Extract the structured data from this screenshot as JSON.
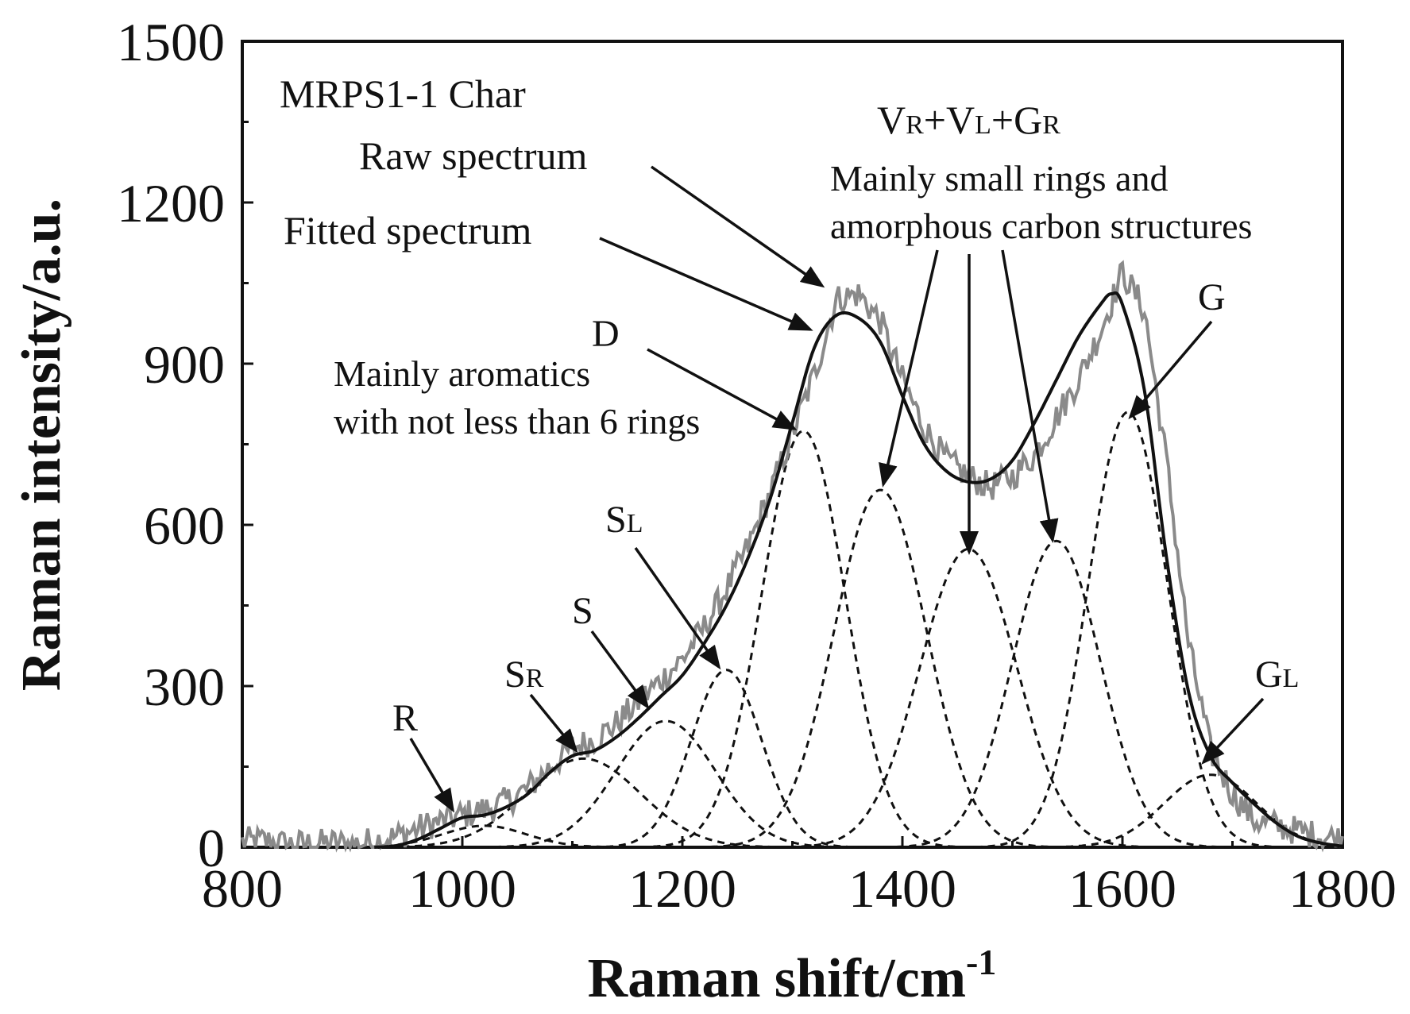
{
  "chart_data": {
    "type": "line",
    "title": "MRPS1-1 Char",
    "xlabel": "Raman shift/cm",
    "xlabel_superscript": "-1",
    "ylabel": "Raman intensity/a.u.",
    "xlim": [
      800,
      1800
    ],
    "ylim": [
      0,
      1500
    ],
    "xticks": [
      800,
      1000,
      1200,
      1400,
      1600,
      1800
    ],
    "xtick_labels": [
      "800",
      "1000",
      "1200",
      "1400",
      "1600",
      "1800"
    ],
    "yticks": [
      0,
      300,
      600,
      900,
      1200,
      1500
    ],
    "ytick_labels": [
      "0",
      "300",
      "600",
      "900",
      "1200",
      "1500"
    ],
    "colors": {
      "raw": "#8a8a8a",
      "fitted": "#111111",
      "band": "#111111",
      "axis": "#111111"
    },
    "raw_spectrum": {
      "name": "Raw spectrum",
      "noise_amplitude": 28,
      "x": [
        800,
        820,
        840,
        860,
        880,
        900,
        920,
        940,
        960,
        980,
        1000,
        1020,
        1040,
        1060,
        1080,
        1100,
        1120,
        1140,
        1160,
        1180,
        1200,
        1220,
        1240,
        1260,
        1280,
        1300,
        1320,
        1340,
        1360,
        1380,
        1400,
        1420,
        1440,
        1460,
        1480,
        1500,
        1520,
        1540,
        1560,
        1580,
        1600,
        1620,
        1640,
        1660,
        1680,
        1700,
        1720,
        1740,
        1760,
        1780,
        1800
      ],
      "y": [
        10,
        12,
        5,
        6,
        8,
        5,
        12,
        20,
        35,
        48,
        60,
        70,
        85,
        110,
        150,
        185,
        200,
        230,
        270,
        310,
        350,
        410,
        480,
        560,
        660,
        770,
        880,
        1020,
        1030,
        980,
        870,
        780,
        720,
        690,
        670,
        690,
        730,
        800,
        870,
        960,
        1070,
        1000,
        720,
        380,
        180,
        100,
        50,
        40,
        30,
        20,
        15
      ]
    },
    "fitted_spectrum": {
      "name": "Fitted spectrum",
      "x": [
        920,
        940,
        960,
        980,
        1000,
        1020,
        1040,
        1060,
        1080,
        1100,
        1120,
        1140,
        1160,
        1180,
        1200,
        1220,
        1240,
        1260,
        1280,
        1300,
        1320,
        1340,
        1360,
        1380,
        1400,
        1420,
        1440,
        1460,
        1480,
        1500,
        1520,
        1540,
        1560,
        1580,
        1590,
        1600,
        1620,
        1640,
        1660,
        1680,
        1700,
        1720,
        1740,
        1760,
        1780,
        1800
      ],
      "y": [
        0,
        3,
        15,
        35,
        55,
        60,
        75,
        100,
        140,
        170,
        180,
        205,
        240,
        280,
        320,
        380,
        450,
        540,
        650,
        790,
        930,
        990,
        985,
        940,
        840,
        750,
        700,
        680,
        685,
        720,
        790,
        870,
        950,
        1010,
        1030,
        1010,
        850,
        540,
        290,
        170,
        120,
        80,
        45,
        20,
        8,
        2
      ]
    },
    "bands": [
      {
        "name": "R",
        "center": 1020,
        "height": 40,
        "width": 38
      },
      {
        "name": "SR",
        "center": 1110,
        "height": 165,
        "width": 52
      },
      {
        "name": "S",
        "center": 1185,
        "height": 235,
        "width": 45
      },
      {
        "name": "SL",
        "center": 1240,
        "height": 330,
        "width": 32
      },
      {
        "name": "D",
        "center": 1310,
        "height": 775,
        "width": 38
      },
      {
        "name": "VL",
        "center": 1380,
        "height": 665,
        "width": 42
      },
      {
        "name": "VR",
        "center": 1460,
        "height": 555,
        "width": 44
      },
      {
        "name": "GR",
        "center": 1540,
        "height": 570,
        "width": 40
      },
      {
        "name": "G",
        "center": 1605,
        "height": 810,
        "width": 36
      },
      {
        "name": "GL",
        "center": 1680,
        "height": 135,
        "width": 42
      }
    ],
    "annotations": {
      "sample": "MRPS1-1 Char",
      "raw": "Raw spectrum",
      "fitted": "Fitted spectrum",
      "d_label": "D",
      "d_desc_1": "Mainly aromatics",
      "d_desc_2": "with not less than 6 rings",
      "v_label_parts": [
        "V",
        "R",
        "+V",
        "L",
        "+G",
        "R"
      ],
      "v_desc_1": "Mainly small rings and",
      "v_desc_2": "amorphous carbon structures",
      "g_label": "G",
      "gl_label": [
        "G",
        "L"
      ],
      "sl_label": [
        "S",
        "L"
      ],
      "s_label": "S",
      "sr_label": [
        "S",
        "R"
      ],
      "r_label": "R"
    }
  }
}
